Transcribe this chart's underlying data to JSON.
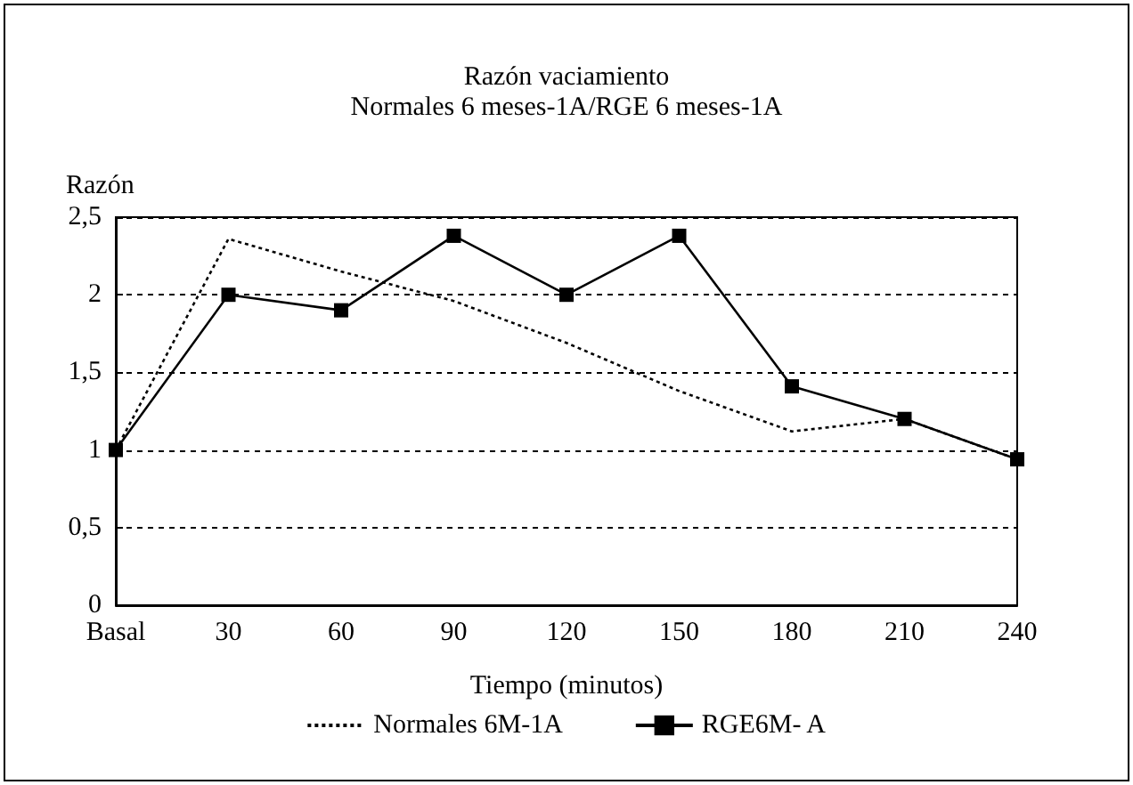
{
  "chart_data": {
    "type": "line",
    "title": "Razón vaciamiento",
    "subtitle": "Normales 6 meses-1A/RGE 6 meses-1A",
    "xlabel": "Tiempo (minutos)",
    "ylabel": "Razón",
    "categories": [
      "Basal",
      "30",
      "60",
      "90",
      "120",
      "150",
      "180",
      "210",
      "240"
    ],
    "series": [
      {
        "name": "Normales 6M-1A",
        "color": "#000000",
        "marker": "none",
        "line_style": "dotted",
        "values": [
          1.0,
          2.36,
          2.15,
          1.96,
          1.69,
          1.38,
          1.12,
          1.2,
          0.94
        ]
      },
      {
        "name": "RGE6M- A",
        "color": "#000000",
        "marker": "square",
        "line_style": "solid",
        "values": [
          1.0,
          2.0,
          1.9,
          2.38,
          2.0,
          2.38,
          1.41,
          1.2,
          0.94
        ]
      }
    ],
    "ylim": [
      0,
      2.5
    ],
    "yticks": [
      0,
      {
        "value": 0.5,
        "label": "0,5"
      },
      1,
      {
        "value": 1.5,
        "label": "1,5"
      },
      2,
      {
        "value": 2.5,
        "label": "2,5"
      }
    ],
    "grid": "y",
    "legend": "bottom"
  }
}
